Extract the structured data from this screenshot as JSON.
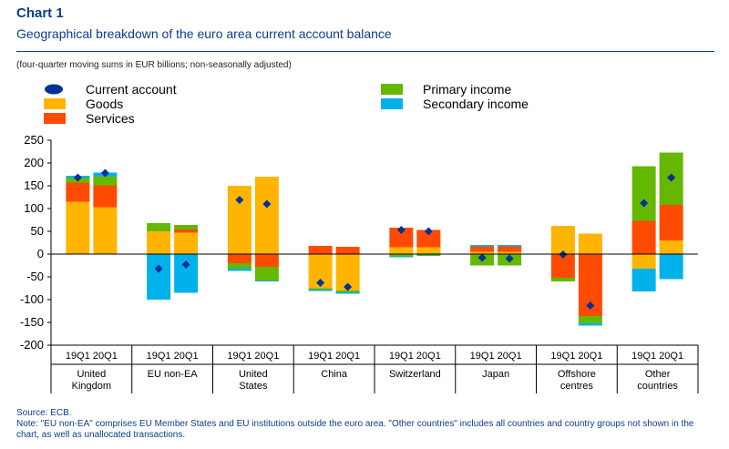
{
  "header": {
    "title": "Chart 1",
    "subtitle": "Geographical breakdown of the euro area current account balance"
  },
  "units_note": "(four-quarter moving sums in EUR billions; non-seasonally adjusted)",
  "footer": {
    "source": "Source: ECB.",
    "note": "Note: \"EU non-EA\" comprises EU Member States and EU institutions outside the euro area. \"Other countries\" includes all countries and country groups not shown in the chart, as well as unallocated transactions."
  },
  "chart_data": {
    "type": "bar",
    "stacked": true,
    "ylim": [
      -200,
      250
    ],
    "yticks": [
      250,
      200,
      150,
      100,
      50,
      0,
      -50,
      -100,
      -150,
      -200
    ],
    "quarters": [
      "19Q1",
      "20Q1"
    ],
    "groups": [
      {
        "label": [
          "United",
          "Kingdom"
        ],
        "label_text": "United Kingdom"
      },
      {
        "label": [
          "EU non-EA"
        ],
        "label_text": "EU non-EA"
      },
      {
        "label": [
          "United",
          "States"
        ],
        "label_text": "United States"
      },
      {
        "label": [
          "China"
        ],
        "label_text": "China"
      },
      {
        "label": [
          "Switzerland"
        ],
        "label_text": "Switzerland"
      },
      {
        "label": [
          "Japan"
        ],
        "label_text": "Japan"
      },
      {
        "label": [
          "Offshore",
          "centres"
        ],
        "label_text": "Offshore centres"
      },
      {
        "label": [
          "Other",
          "countries"
        ],
        "label_text": "Other countries"
      }
    ],
    "categories": [
      "United Kingdom 19Q1",
      "United Kingdom 20Q1",
      "EU non-EA 19Q1",
      "EU non-EA 20Q1",
      "United States 19Q1",
      "United States 20Q1",
      "China 19Q1",
      "China 20Q1",
      "Switzerland 19Q1",
      "Switzerland 20Q1",
      "Japan 19Q1",
      "Japan 20Q1",
      "Offshore centres 19Q1",
      "Offshore centres 20Q1",
      "Other countries 19Q1",
      "Other countries 20Q1"
    ],
    "series": [
      {
        "name": "Goods",
        "color": "#ffb400",
        "values": [
          115,
          103,
          50,
          47,
          150,
          170,
          -75,
          -80,
          15,
          15,
          5,
          5,
          62,
          45,
          -32,
          30
        ]
      },
      {
        "name": "Services",
        "color": "#ff4b00",
        "values": [
          42,
          48,
          0,
          7,
          -20,
          -28,
          18,
          16,
          43,
          38,
          12,
          12,
          -52,
          -136,
          73,
          78
        ]
      },
      {
        "name": "Primary income",
        "color": "#65b800",
        "values": [
          10,
          20,
          18,
          10,
          -12,
          -30,
          -3,
          -4,
          -5,
          -3,
          -25,
          -25,
          -8,
          -16,
          120,
          115
        ]
      },
      {
        "name": "Secondary income",
        "color": "#00b1ea",
        "values": [
          5,
          8,
          -100,
          -85,
          -5,
          -2,
          -3,
          -3,
          -2,
          -1,
          3,
          3,
          0,
          -5,
          -50,
          -55
        ]
      }
    ],
    "current_account": {
      "name": "Current account",
      "color": "#003299",
      "values": [
        168,
        178,
        -32,
        -23,
        119,
        110,
        -63,
        -72,
        53,
        50,
        -8,
        -10,
        -1,
        -113,
        112,
        168
      ]
    },
    "legend": {
      "left": [
        "Current account",
        "Goods",
        "Services"
      ],
      "right": [
        "Primary income",
        "Secondary income"
      ],
      "placement": "top"
    },
    "xlabel": "",
    "ylabel": "",
    "grid": false
  }
}
